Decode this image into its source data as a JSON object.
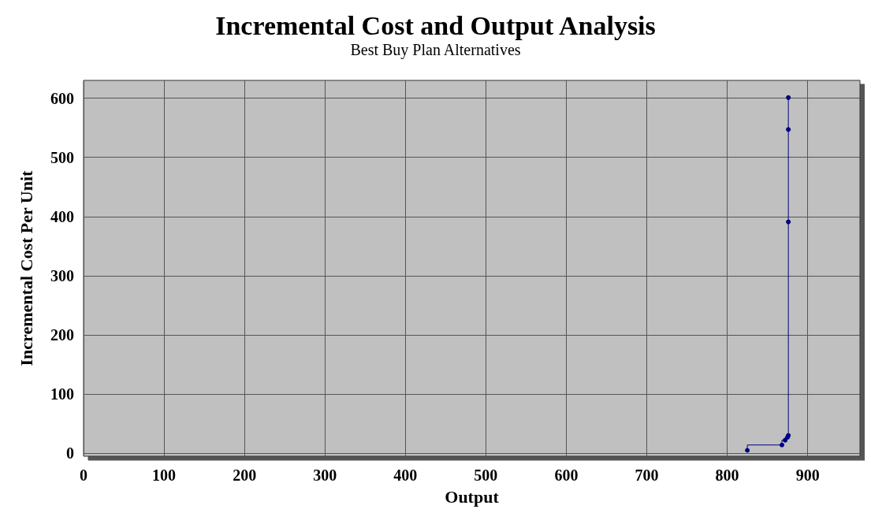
{
  "chart_data": {
    "type": "step",
    "title": "Incremental Cost and Output Analysis",
    "subtitle": "Best Buy Plan Alternatives",
    "xlabel": "Output",
    "ylabel": "Incremental Cost Per Unit",
    "x": [
      825,
      868,
      872,
      875,
      876,
      876,
      876,
      876
    ],
    "series": [
      {
        "color": "#000080",
        "values": [
          5,
          14,
          22,
          27,
          30,
          391,
          547,
          601
        ]
      }
    ],
    "xlim": [
      0,
      965
    ],
    "xticks": [
      0,
      100,
      200,
      300,
      400,
      500,
      600,
      700,
      800,
      900
    ],
    "ylim": [
      -5,
      630
    ],
    "yticks": [
      0,
      100,
      200,
      300,
      400,
      500,
      600
    ],
    "grid": true,
    "marker": "circle"
  }
}
